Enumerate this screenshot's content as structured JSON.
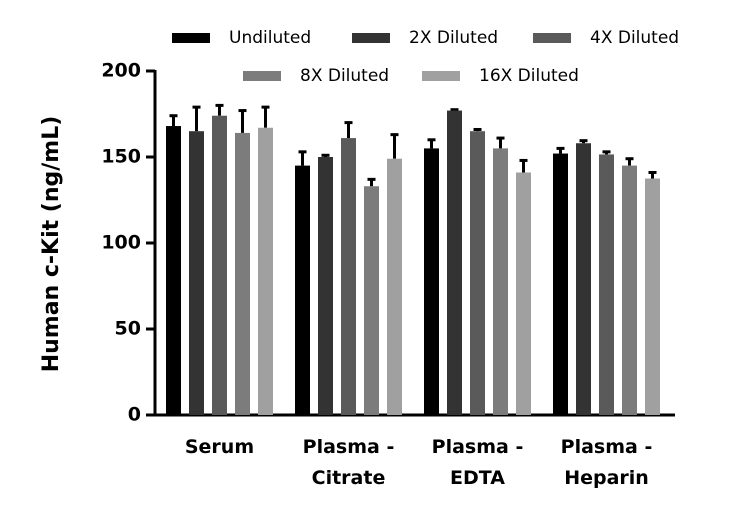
{
  "chart_data": {
    "type": "bar",
    "title": "",
    "xlabel": "",
    "ylabel": "Human c-Kit (ng/mL)",
    "ylim": [
      0,
      200
    ],
    "yticks": [
      "0",
      "50",
      "100",
      "150",
      "200"
    ],
    "categories": [
      [
        "Serum"
      ],
      [
        "Plasma -",
        "Citrate"
      ],
      [
        "Plasma -",
        "EDTA"
      ],
      [
        "Plasma -",
        "Heparin"
      ]
    ],
    "legend_position": "top",
    "series": [
      {
        "name": "Undiluted",
        "color": "#000000",
        "values": [
          168,
          145,
          155,
          152
        ],
        "error": [
          6,
          8,
          5,
          3
        ]
      },
      {
        "name": "2X Diluted",
        "color": "#333333",
        "values": [
          165,
          150,
          177,
          158
        ],
        "error": [
          14,
          1,
          0.5,
          1.5
        ]
      },
      {
        "name": "4X Diluted",
        "color": "#5a5a5a",
        "values": [
          174,
          161,
          165,
          151.5
        ],
        "error": [
          6,
          9,
          1,
          1.5
        ]
      },
      {
        "name": "8X Diluted",
        "color": "#7c7c7c",
        "values": [
          164,
          133,
          155,
          145
        ],
        "error": [
          13,
          4,
          6,
          4
        ]
      },
      {
        "name": "16X Diluted",
        "color": "#a0a0a0",
        "values": [
          167,
          149,
          141,
          137.5
        ],
        "error": [
          12,
          14,
          7,
          3.5
        ]
      }
    ]
  }
}
